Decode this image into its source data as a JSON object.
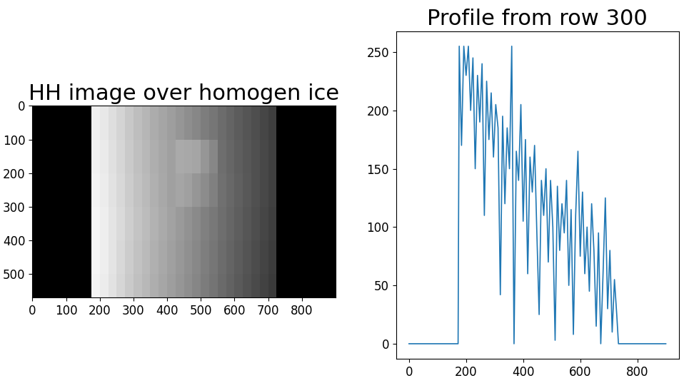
{
  "chart_data": [
    {
      "type": "heatmap",
      "title": "HH image over homogen ice",
      "x_edges": [
        0,
        175,
        200,
        225,
        250,
        275,
        300,
        325,
        350,
        375,
        400,
        425,
        450,
        475,
        500,
        525,
        550,
        575,
        600,
        625,
        650,
        675,
        700,
        725,
        900
      ],
      "y_edges": [
        0,
        100,
        200,
        300,
        400,
        500,
        570
      ],
      "cells": [
        [
          0,
          240,
          232,
          222,
          212,
          200,
          190,
          182,
          172,
          165,
          158,
          150,
          142,
          135,
          125,
          118,
          108,
          100,
          92,
          85,
          78,
          70,
          62,
          0
        ],
        [
          0,
          242,
          234,
          224,
          214,
          202,
          192,
          184,
          174,
          167,
          160,
          170,
          168,
          165,
          150,
          135,
          110,
          102,
          94,
          87,
          80,
          72,
          64,
          0
        ],
        [
          0,
          244,
          236,
          226,
          216,
          204,
          194,
          186,
          176,
          168,
          160,
          165,
          160,
          150,
          140,
          128,
          112,
          104,
          96,
          88,
          80,
          72,
          64,
          0
        ],
        [
          0,
          246,
          238,
          228,
          218,
          206,
          196,
          188,
          178,
          170,
          162,
          154,
          146,
          138,
          128,
          120,
          110,
          102,
          94,
          86,
          78,
          70,
          62,
          0
        ],
        [
          0,
          246,
          238,
          228,
          216,
          204,
          194,
          186,
          176,
          168,
          160,
          152,
          144,
          136,
          126,
          118,
          108,
          100,
          92,
          84,
          76,
          68,
          60,
          0
        ],
        [
          0,
          244,
          236,
          226,
          214,
          202,
          192,
          184,
          174,
          166,
          158,
          150,
          142,
          134,
          124,
          116,
          106,
          98,
          90,
          82,
          74,
          66,
          58,
          0
        ]
      ],
      "color_range": [
        0,
        255
      ],
      "color": "gray",
      "xlim": [
        0,
        900
      ],
      "ylim": [
        570,
        0
      ],
      "xticks": [
        0,
        100,
        200,
        300,
        400,
        500,
        600,
        700,
        800
      ],
      "yticks": [
        0,
        100,
        200,
        300,
        400,
        500
      ]
    },
    {
      "type": "line",
      "title": "Profile from row 300",
      "color": "#1f77b4",
      "x": [
        0,
        172,
        176,
        184,
        192,
        200,
        208,
        216,
        224,
        232,
        240,
        248,
        256,
        264,
        272,
        280,
        288,
        296,
        304,
        312,
        320,
        328,
        336,
        344,
        352,
        360,
        368,
        376,
        384,
        392,
        400,
        408,
        416,
        424,
        432,
        440,
        448,
        456,
        464,
        472,
        480,
        488,
        496,
        504,
        512,
        520,
        528,
        536,
        544,
        552,
        560,
        568,
        576,
        584,
        592,
        600,
        608,
        616,
        624,
        632,
        640,
        648,
        656,
        664,
        672,
        680,
        688,
        696,
        704,
        712,
        720,
        728,
        734,
        900
      ],
      "values": [
        0,
        0,
        255,
        170,
        255,
        230,
        255,
        200,
        245,
        150,
        230,
        190,
        240,
        110,
        225,
        175,
        215,
        160,
        205,
        185,
        42,
        195,
        120,
        185,
        150,
        255,
        0,
        165,
        140,
        205,
        105,
        175,
        60,
        160,
        130,
        170,
        95,
        25,
        140,
        110,
        150,
        70,
        140,
        100,
        3,
        135,
        80,
        120,
        95,
        140,
        50,
        115,
        8,
        110,
        165,
        75,
        130,
        60,
        100,
        45,
        120,
        80,
        15,
        95,
        0,
        60,
        125,
        30,
        80,
        10,
        55,
        25,
        0,
        0
      ],
      "xlim": [
        -45,
        945
      ],
      "ylim": [
        -13,
        268
      ],
      "xticks": [
        0,
        200,
        400,
        600,
        800
      ],
      "yticks": [
        0,
        50,
        100,
        150,
        200,
        250
      ]
    }
  ]
}
